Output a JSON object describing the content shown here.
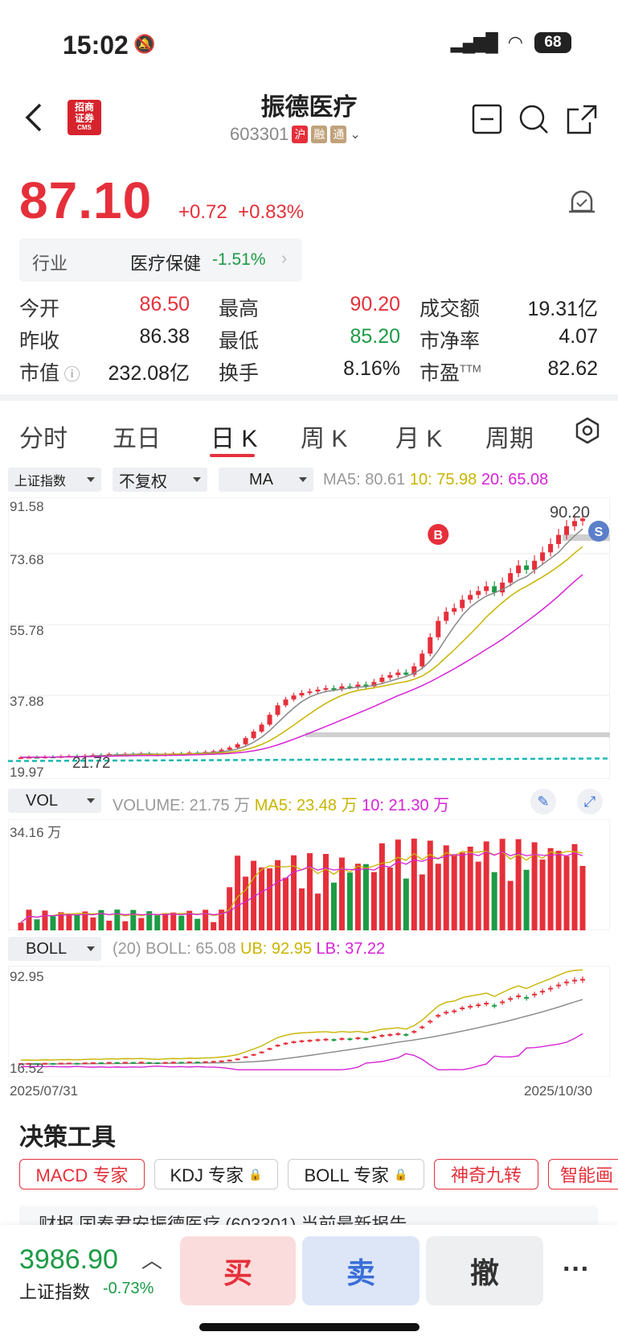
{
  "status": {
    "time": "15:02",
    "battery": "68"
  },
  "header": {
    "title": "振德医疗",
    "code": "603301",
    "tags": [
      "沪",
      "融",
      "通"
    ],
    "logo_text": "招商证券",
    "logo_sub": "CMS"
  },
  "quote": {
    "price": "87.10",
    "change": "+0.72",
    "change_pct": "+0.83%",
    "industry_label": "行业",
    "industry_name": "医疗保健",
    "industry_pct": "-1.51%"
  },
  "stats": [
    {
      "label": "今开",
      "value": "86.50",
      "color": "red"
    },
    {
      "label": "最高",
      "value": "90.20",
      "color": "red"
    },
    {
      "label": "成交额",
      "value": "19.31亿",
      "color": "black"
    },
    {
      "label": "昨收",
      "value": "86.38",
      "color": "black"
    },
    {
      "label": "最低",
      "value": "85.20",
      "color": "green"
    },
    {
      "label": "市净率",
      "value": "4.07",
      "color": "black"
    },
    {
      "label": "市值",
      "value": "232.08亿",
      "color": "black"
    },
    {
      "label": "换手",
      "value": "8.16%",
      "color": "black"
    },
    {
      "label": "市盈",
      "value": "82.62",
      "color": "black",
      "sup": "TTM"
    }
  ],
  "tabs": [
    "分时",
    "五日",
    "日 K",
    "周 K",
    "月 K",
    "周期"
  ],
  "active_tab": "日 K",
  "selectors": {
    "index": "上证指数",
    "adjust": "不复权",
    "ma": "MA"
  },
  "ma_legend": {
    "ma5": "MA5: 80.61",
    "ma10": "10: 75.98",
    "ma20": "20: 65.08"
  },
  "colors": {
    "up": "#e5303b",
    "down": "#1c9b45",
    "ma5": "#888888",
    "ma10": "#c8b400",
    "ma20": "#d623d6",
    "teal": "#1bb8b0"
  },
  "chart_data": {
    "type": "candlestick",
    "y_ticks": [
      "91.58",
      "73.68",
      "55.78",
      "37.88",
      "19.97"
    ],
    "ylim": [
      19.97,
      91.58
    ],
    "high_label": "90.20",
    "low_label": "21.72",
    "closes": [
      21.5,
      21.6,
      21.5,
      21.7,
      21.6,
      21.8,
      21.9,
      21.7,
      22.0,
      22.2,
      22.1,
      22.4,
      22.3,
      22.5,
      22.4,
      22.6,
      22.3,
      22.1,
      22.4,
      22.6,
      22.5,
      22.8,
      22.7,
      23.0,
      23.2,
      23.6,
      24.2,
      25.1,
      26.8,
      28.6,
      30.5,
      33.2,
      35.8,
      37.4,
      38.5,
      39.2,
      39.6,
      40.1,
      40.5,
      40.2,
      41.0,
      40.8,
      41.5,
      41.0,
      42.2,
      43.4,
      44.1,
      44.8,
      44.2,
      46.5,
      50.0,
      54.5,
      59.0,
      61.5,
      62.5,
      64.8,
      66.1,
      67.2,
      68.5,
      66.8,
      69.5,
      72.1,
      74.2,
      73.0,
      75.5,
      77.8,
      80.1,
      82.6,
      85.0,
      86.4,
      87.1
    ],
    "volume": {
      "label": "VOL",
      "volume": "VOLUME: 21.75 万",
      "ma5": "MA5: 23.48 万",
      "ma10": "10: 21.30 万",
      "max": "34.16 万"
    },
    "boll": {
      "label": "BOLL",
      "params": "(20)",
      "mid": "BOLL: 65.08",
      "ub": "UB: 92.95",
      "lb": "LB: 37.22",
      "top": "92.95",
      "bottom": "16.52"
    },
    "x_labels": [
      "2025/07/31",
      "2025/10/30"
    ]
  },
  "decision": {
    "title": "决策工具",
    "tools": [
      "MACD 专家",
      "KDJ 专家",
      "BOLL 专家",
      "神奇九转",
      "智能画"
    ]
  },
  "news_peek": "财报   国泰君安振德医疗 (603301) 当前最新报告",
  "bottom": {
    "index_value": "3986.90",
    "index_name": "上证指数",
    "index_pct": "-0.73%",
    "buy": "买",
    "sell": "卖",
    "cancel": "撤",
    "more": "···"
  }
}
